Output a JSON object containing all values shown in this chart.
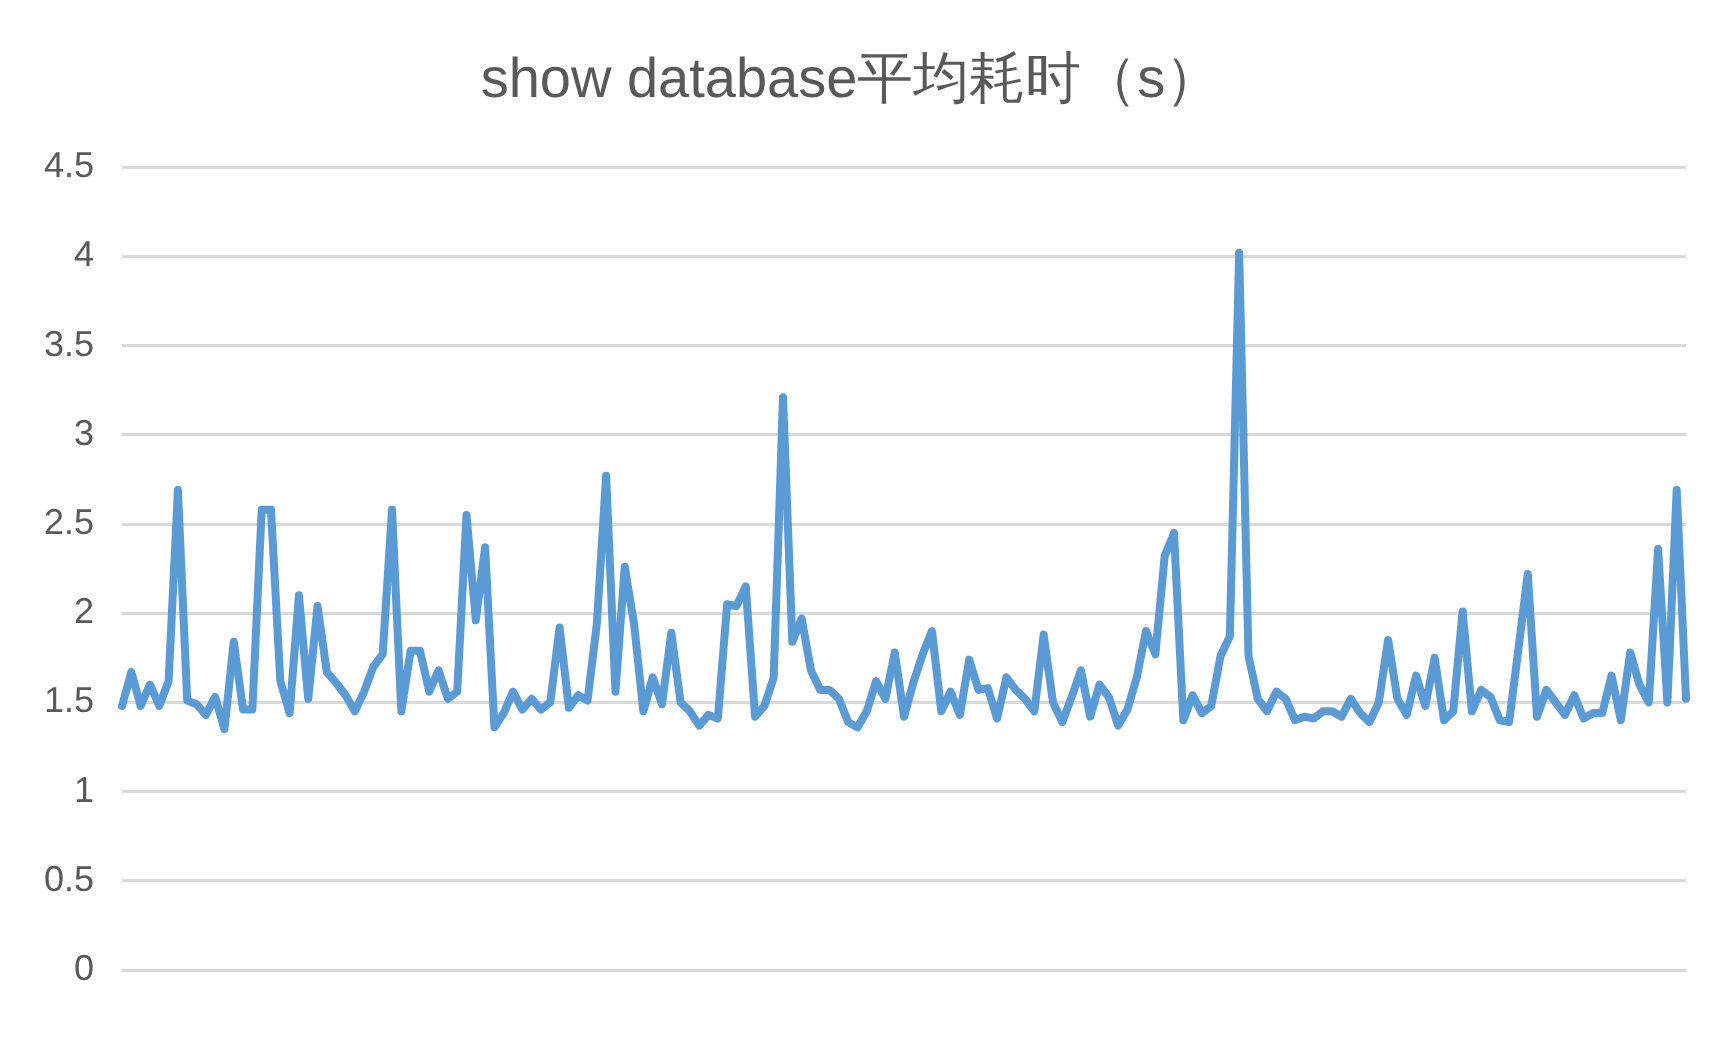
{
  "chart_data": {
    "type": "line",
    "title": "show database平均耗时（s）",
    "categories": [
      null,
      null,
      null,
      null,
      null,
      null,
      null,
      null,
      null,
      null,
      null,
      null,
      null,
      null,
      null,
      null,
      null,
      null,
      null,
      null,
      null,
      null,
      null,
      null,
      null,
      null,
      null,
      null,
      null,
      null,
      null,
      null,
      null,
      null,
      null,
      null,
      null,
      null,
      null,
      null,
      null,
      null,
      null,
      null,
      null,
      null,
      null,
      null,
      null,
      null,
      null,
      null,
      null,
      null,
      null,
      null,
      null,
      null,
      null,
      null,
      null,
      null,
      null,
      null,
      null,
      null,
      null,
      null,
      null,
      null,
      null,
      null,
      null,
      null,
      null,
      null,
      null,
      null,
      null,
      null,
      null,
      null,
      null,
      null,
      null,
      null,
      null,
      null,
      null,
      null,
      null,
      null,
      null,
      null,
      null,
      null,
      null,
      null,
      null,
      null,
      null,
      null,
      null,
      null,
      null,
      null,
      null,
      null,
      null,
      null,
      null,
      null,
      null,
      null,
      null,
      null,
      null,
      null,
      null,
      null,
      null,
      null,
      null,
      null,
      null,
      null,
      null,
      null,
      null,
      null,
      null,
      null,
      null,
      null,
      null,
      null,
      null,
      null,
      null,
      null,
      null,
      null,
      null,
      null,
      null,
      null,
      null,
      null,
      null,
      null,
      null,
      null,
      null,
      null,
      null,
      null,
      null,
      null,
      null,
      null,
      null,
      null,
      null,
      null,
      null,
      null,
      null,
      null,
      null
    ],
    "series": [
      {
        "color": "#5b9bd5",
        "values": [
          1.48,
          1.67,
          1.48,
          1.6,
          1.48,
          1.62,
          2.69,
          1.51,
          1.49,
          1.43,
          1.53,
          1.35,
          1.84,
          1.46,
          1.46,
          2.58,
          2.58,
          1.62,
          1.44,
          2.1,
          1.52,
          2.04,
          1.67,
          1.61,
          1.54,
          1.45,
          1.56,
          1.7,
          1.77,
          2.58,
          1.45,
          1.79,
          1.79,
          1.56,
          1.68,
          1.52,
          1.56,
          2.55,
          1.96,
          2.37,
          1.36,
          1.44,
          1.56,
          1.46,
          1.52,
          1.46,
          1.5,
          1.92,
          1.47,
          1.54,
          1.51,
          1.94,
          2.77,
          1.56,
          2.26,
          1.94,
          1.45,
          1.64,
          1.49,
          1.89,
          1.5,
          1.45,
          1.37,
          1.43,
          1.41,
          2.05,
          2.04,
          2.15,
          1.42,
          1.48,
          1.64,
          3.21,
          1.84,
          1.97,
          1.68,
          1.57,
          1.57,
          1.52,
          1.39,
          1.36,
          1.45,
          1.62,
          1.52,
          1.78,
          1.42,
          1.61,
          1.77,
          1.9,
          1.45,
          1.56,
          1.43,
          1.74,
          1.57,
          1.58,
          1.41,
          1.64,
          1.57,
          1.52,
          1.45,
          1.88,
          1.5,
          1.39,
          1.53,
          1.68,
          1.42,
          1.6,
          1.53,
          1.37,
          1.46,
          1.64,
          1.9,
          1.77,
          2.32,
          2.45,
          1.4,
          1.54,
          1.44,
          1.48,
          1.76,
          1.87,
          4.02,
          1.76,
          1.52,
          1.45,
          1.56,
          1.52,
          1.4,
          1.42,
          1.41,
          1.45,
          1.45,
          1.42,
          1.52,
          1.44,
          1.39,
          1.5,
          1.85,
          1.52,
          1.43,
          1.65,
          1.48,
          1.75,
          1.4,
          1.45,
          2.01,
          1.45,
          1.57,
          1.53,
          1.4,
          1.39,
          1.8,
          2.22,
          1.42,
          1.57,
          1.5,
          1.43,
          1.54,
          1.41,
          1.44,
          1.44,
          1.65,
          1.4,
          1.78,
          1.6,
          1.5,
          2.36,
          1.5,
          2.69,
          1.52
        ]
      }
    ],
    "ylim": [
      0,
      4.5
    ],
    "yticks": [
      0,
      0.5,
      1,
      1.5,
      2,
      2.5,
      3,
      3.5,
      4,
      4.5
    ],
    "grid": "y",
    "legend": false,
    "tick_labels": "y",
    "marker": "none"
  }
}
